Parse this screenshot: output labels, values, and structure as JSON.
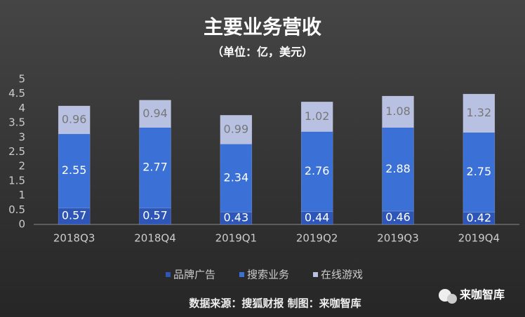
{
  "chart_data": {
    "type": "stacked-bar",
    "title": "主要业务营收",
    "subtitle": "（单位：亿，美元）",
    "categories": [
      "2018Q3",
      "2018Q4",
      "2019Q1",
      "2019Q2",
      "2019Q3",
      "2019Q4"
    ],
    "series": [
      {
        "name": "品牌广告",
        "color": "#2d56b8",
        "values": [
          0.57,
          0.57,
          0.43,
          0.44,
          0.46,
          0.42
        ]
      },
      {
        "name": "搜索业务",
        "color": "#3b71d6",
        "values": [
          2.55,
          2.77,
          2.34,
          2.76,
          2.88,
          2.75
        ]
      },
      {
        "name": "在线游戏",
        "color": "#b9c1e2",
        "values": [
          0.96,
          0.94,
          0.99,
          1.02,
          1.08,
          1.32
        ]
      }
    ],
    "ylim": [
      0,
      5
    ],
    "yticks": [
      0,
      0.5,
      1,
      1.5,
      2,
      2.5,
      3,
      3.5,
      4,
      4.5,
      5
    ],
    "source": "数据来源：搜狐财报 制图：来咖智库",
    "watermark": "来咖智库"
  }
}
